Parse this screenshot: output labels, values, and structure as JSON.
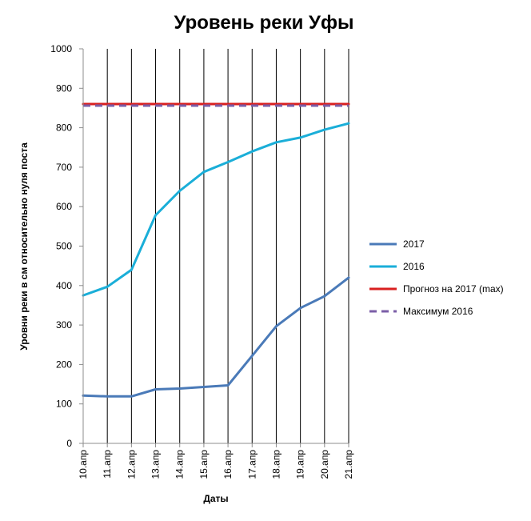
{
  "chart_data": {
    "type": "line",
    "title": "Уровень реки Уфы",
    "xlabel": "Даты",
    "ylabel": "Уровни реки в см относительно нуля поста",
    "ylim": [
      0,
      1000
    ],
    "yticks": [
      0,
      100,
      200,
      300,
      400,
      500,
      600,
      700,
      800,
      900,
      1000
    ],
    "categories": [
      "10.апр",
      "11.апр",
      "12.апр",
      "13.апр",
      "14.апр",
      "15.апр",
      "16.апр",
      "17.апр",
      "18.апр",
      "19.апр",
      "20.апр",
      "21.апр"
    ],
    "grid": "vertical lines at each date",
    "legend_position": "right",
    "series": [
      {
        "name": "2017",
        "color": "#4a7ab8",
        "style": "solid",
        "values": [
          121,
          119,
          119,
          137,
          139,
          143,
          147,
          222,
          297,
          343,
          373,
          420
        ]
      },
      {
        "name": "2016",
        "color": "#1aaed8",
        "style": "solid",
        "values": [
          375,
          397,
          440,
          578,
          640,
          688,
          713,
          740,
          763,
          775,
          795,
          811
        ]
      },
      {
        "name": "Прогноз на 2017  (max)",
        "color": "#d91f1f",
        "style": "solid",
        "values": [
          860,
          860,
          860,
          860,
          860,
          860,
          860,
          860,
          860,
          860,
          860,
          860
        ]
      },
      {
        "name": "Максимум  2016",
        "color": "#7b5ea7",
        "style": "dashed",
        "values": [
          856,
          856,
          856,
          856,
          856,
          856,
          856,
          856,
          856,
          856,
          856,
          856
        ]
      }
    ]
  }
}
